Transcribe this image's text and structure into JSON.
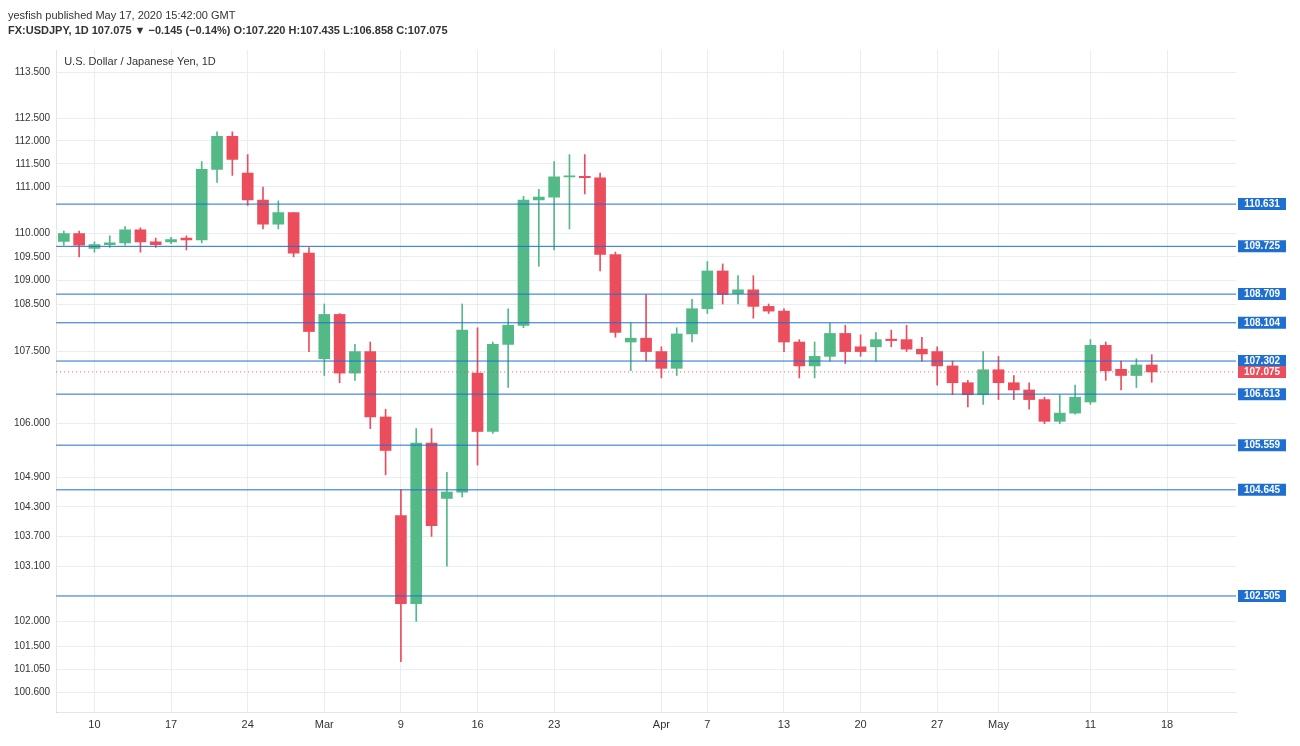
{
  "chart_data": {
    "type": "candlestick",
    "title": "U.S. Dollar / Japanese Yen, 1D",
    "annotations": [
      "yesfish published May 17, 2020 15:42:00 GMT",
      "FX:USDJPY, 1D 107.075 ▼ −0.145 (−0.14%) O:107.220 H:107.435 L:106.858 C:107.075"
    ],
    "categories": [
      null,
      null,
      "10",
      null,
      null,
      null,
      null,
      "17",
      null,
      null,
      null,
      null,
      "24",
      null,
      null,
      null,
      null,
      "Mar",
      null,
      null,
      null,
      null,
      "9",
      null,
      null,
      null,
      null,
      "16",
      null,
      null,
      null,
      null,
      "23",
      null,
      null,
      null,
      null,
      null,
      null,
      "Apr",
      null,
      null,
      "7",
      null,
      null,
      null,
      null,
      "13",
      null,
      null,
      null,
      null,
      "20",
      null,
      null,
      null,
      null,
      "27",
      null,
      null,
      null,
      "May",
      null,
      null,
      null,
      null,
      null,
      "11",
      null,
      null,
      null,
      null,
      "18",
      null,
      null,
      null,
      null
    ],
    "ohlc": [
      [
        109.83,
        110.05,
        109.75,
        110.0
      ],
      [
        110.0,
        110.05,
        109.5,
        109.75
      ],
      [
        109.68,
        109.82,
        109.6,
        109.76
      ],
      [
        109.76,
        109.95,
        109.7,
        109.8
      ],
      [
        109.8,
        110.15,
        109.75,
        110.08
      ],
      [
        110.08,
        110.12,
        109.6,
        109.82
      ],
      [
        109.82,
        109.9,
        109.7,
        109.76
      ],
      [
        109.82,
        109.92,
        109.78,
        109.87
      ],
      [
        109.9,
        109.95,
        109.65,
        109.86
      ],
      [
        109.86,
        111.55,
        109.8,
        111.38
      ],
      [
        111.38,
        112.2,
        111.1,
        112.1
      ],
      [
        112.1,
        112.2,
        111.25,
        111.6
      ],
      [
        111.3,
        111.7,
        110.6,
        110.72
      ],
      [
        110.72,
        111.0,
        110.1,
        110.2
      ],
      [
        110.2,
        110.7,
        110.1,
        110.45
      ],
      [
        110.45,
        110.45,
        109.5,
        109.58
      ],
      [
        109.58,
        109.7,
        107.5,
        107.92
      ],
      [
        107.35,
        108.5,
        107.0,
        108.28
      ],
      [
        108.28,
        108.3,
        106.85,
        107.05
      ],
      [
        107.05,
        107.65,
        106.9,
        107.5
      ],
      [
        107.5,
        107.7,
        105.9,
        106.14
      ],
      [
        106.14,
        106.3,
        104.95,
        105.45
      ],
      [
        104.12,
        104.65,
        101.2,
        102.35
      ],
      [
        102.35,
        105.9,
        102.0,
        105.6
      ],
      [
        105.6,
        105.9,
        103.7,
        103.92
      ],
      [
        104.47,
        105.0,
        103.1,
        104.6
      ],
      [
        104.6,
        108.5,
        104.5,
        107.95
      ],
      [
        107.05,
        108.0,
        105.15,
        105.84
      ],
      [
        105.84,
        107.7,
        105.8,
        107.65
      ],
      [
        107.65,
        108.4,
        106.75,
        108.05
      ],
      [
        108.05,
        110.8,
        108.0,
        110.72
      ],
      [
        110.72,
        110.95,
        109.3,
        110.78
      ],
      [
        110.78,
        111.55,
        109.65,
        111.22
      ],
      [
        111.22,
        111.7,
        110.1,
        111.23
      ],
      [
        111.23,
        111.7,
        110.85,
        111.2
      ],
      [
        111.2,
        111.3,
        109.2,
        109.55
      ],
      [
        109.55,
        109.6,
        107.8,
        107.9
      ],
      [
        107.7,
        108.1,
        107.1,
        107.78
      ],
      [
        107.78,
        108.7,
        107.3,
        107.5
      ],
      [
        107.5,
        107.6,
        106.95,
        107.15
      ],
      [
        107.15,
        108.0,
        107.0,
        107.87
      ],
      [
        107.87,
        108.6,
        107.7,
        108.4
      ],
      [
        108.4,
        109.4,
        108.3,
        109.2
      ],
      [
        109.2,
        109.35,
        108.5,
        108.7
      ],
      [
        108.72,
        109.1,
        108.5,
        108.8
      ],
      [
        108.8,
        109.1,
        108.2,
        108.45
      ],
      [
        108.45,
        108.5,
        108.3,
        108.35
      ],
      [
        108.35,
        108.4,
        107.5,
        107.7
      ],
      [
        107.7,
        107.75,
        106.95,
        107.2
      ],
      [
        107.2,
        107.7,
        106.95,
        107.4
      ],
      [
        107.4,
        108.1,
        107.3,
        107.88
      ],
      [
        107.88,
        108.05,
        107.25,
        107.5
      ],
      [
        107.6,
        107.85,
        107.4,
        107.5
      ],
      [
        107.6,
        107.9,
        107.3,
        107.75
      ],
      [
        107.76,
        107.95,
        107.6,
        107.73
      ],
      [
        107.75,
        108.05,
        107.5,
        107.55
      ],
      [
        107.55,
        107.8,
        107.3,
        107.45
      ],
      [
        107.5,
        107.6,
        106.8,
        107.2
      ],
      [
        107.2,
        107.3,
        106.6,
        106.85
      ],
      [
        106.85,
        106.9,
        106.35,
        106.6
      ],
      [
        106.6,
        107.5,
        106.4,
        107.12
      ],
      [
        107.12,
        107.4,
        106.5,
        106.85
      ],
      [
        106.85,
        107.0,
        106.5,
        106.7
      ],
      [
        106.7,
        106.85,
        106.3,
        106.5
      ],
      [
        106.5,
        106.55,
        106.0,
        106.05
      ],
      [
        106.05,
        106.6,
        106.0,
        106.22
      ],
      [
        106.22,
        106.8,
        106.2,
        106.55
      ],
      [
        106.45,
        107.75,
        106.4,
        107.63
      ],
      [
        107.63,
        107.7,
        106.9,
        107.1
      ],
      [
        107.13,
        107.3,
        106.7,
        107.0
      ],
      [
        107.0,
        107.35,
        106.75,
        107.22
      ],
      [
        107.22,
        107.435,
        106.858,
        107.075
      ],
      null,
      null,
      null,
      null,
      null
    ],
    "ylim": [
      100.2,
      114
    ],
    "yticks": [
      {
        "value": 100.6,
        "label": "100.600"
      },
      {
        "value": 101.05,
        "label": "101.050"
      },
      {
        "value": 101.5,
        "label": "101.500"
      },
      {
        "value": 102,
        "label": "102.000"
      },
      {
        "value": 103.1,
        "label": "103.100"
      },
      {
        "value": 103.7,
        "label": "103.700"
      },
      {
        "value": 104.3,
        "label": "104.300"
      },
      {
        "value": 104.9,
        "label": "104.900"
      },
      {
        "value": 106,
        "label": "106.000"
      },
      {
        "value": 107.5,
        "label": "107.500"
      },
      {
        "value": 108.5,
        "label": "108.500"
      },
      {
        "value": 109,
        "label": "109.000"
      },
      {
        "value": 109.5,
        "label": "109.500"
      },
      {
        "value": 110,
        "label": "110.000"
      },
      {
        "value": 111,
        "label": "111.000"
      },
      {
        "value": 111.5,
        "label": "111.500"
      },
      {
        "value": 112,
        "label": "112.000"
      },
      {
        "value": 112.5,
        "label": "112.500"
      },
      {
        "value": 113.5,
        "label": "113.500"
      }
    ],
    "log": "y",
    "grid": true,
    "ref_lines": [
      {
        "axis": "y",
        "value": 110.631,
        "label": "110.631",
        "color": "#1e6fd0"
      },
      {
        "axis": "y",
        "value": 109.725,
        "label": "109.725",
        "color": "#1e6fd0"
      },
      {
        "axis": "y",
        "value": 108.709,
        "label": "108.709",
        "color": "#1e6fd0"
      },
      {
        "axis": "y",
        "value": 108.104,
        "label": "108.104",
        "color": "#1e6fd0"
      },
      {
        "axis": "y",
        "value": 107.302,
        "label": "107.302",
        "color": "#1e6fd0"
      },
      {
        "axis": "y",
        "value": 107.075,
        "label": "107.075",
        "color": "#eb4d5c",
        "line_style": "dotted"
      },
      {
        "axis": "y",
        "value": 106.613,
        "label": "106.613",
        "color": "#1e6fd0"
      },
      {
        "axis": "y",
        "value": 105.559,
        "label": "105.559",
        "color": "#1e6fd0"
      },
      {
        "axis": "y",
        "value": 104.645,
        "label": "104.645",
        "color": "#1e6fd0"
      },
      {
        "axis": "y",
        "value": 102.505,
        "label": "102.505",
        "color": "#1e6fd0"
      }
    ]
  }
}
